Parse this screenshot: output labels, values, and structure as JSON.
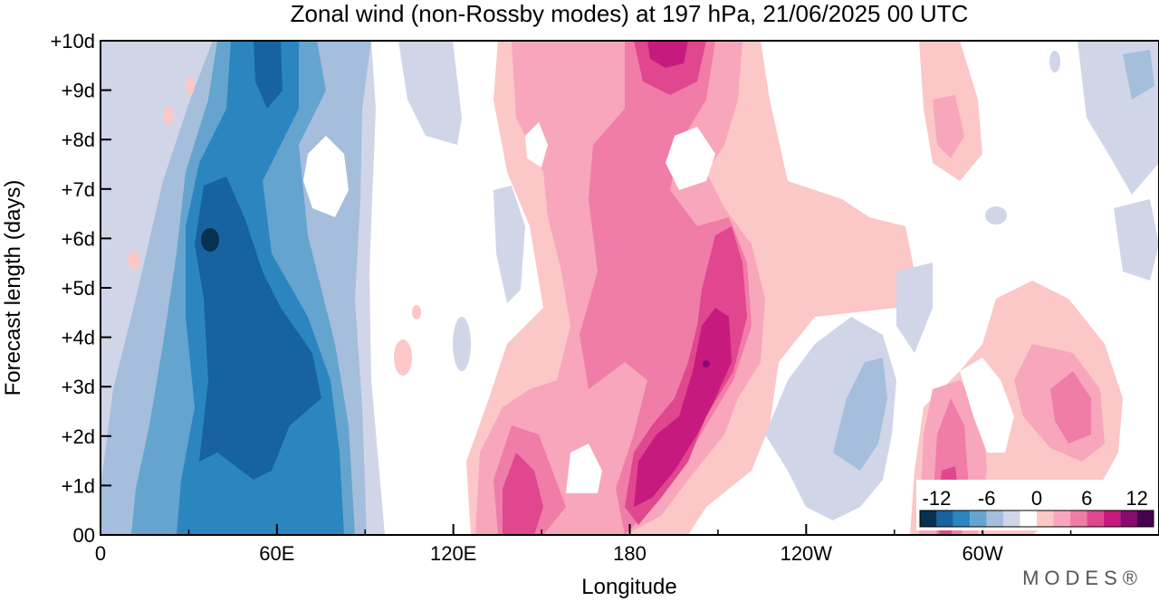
{
  "chart_data": {
    "type": "heatmap",
    "title": "Zonal wind (non-Rossby modes) at 197 hPa,  21/06/2025  00 UTC",
    "xlabel": "Longitude",
    "ylabel": "Forecast length (days)",
    "x_ticks": [
      {
        "lon": 0,
        "label": "0"
      },
      {
        "lon": 60,
        "label": "60E"
      },
      {
        "lon": 120,
        "label": "120E"
      },
      {
        "lon": 180,
        "label": "180"
      },
      {
        "lon": 240,
        "label": "120W"
      },
      {
        "lon": 300,
        "label": "60W"
      }
    ],
    "x_minor_step": 30,
    "xlim": [
      0,
      360
    ],
    "y_ticks": [
      {
        "day": 0,
        "label": "00"
      },
      {
        "day": 1,
        "label": "+1d"
      },
      {
        "day": 2,
        "label": "+2d"
      },
      {
        "day": 3,
        "label": "+3d"
      },
      {
        "day": 4,
        "label": "+4d"
      },
      {
        "day": 5,
        "label": "+5d"
      },
      {
        "day": 6,
        "label": "+6d"
      },
      {
        "day": 7,
        "label": "+7d"
      },
      {
        "day": 8,
        "label": "+8d"
      },
      {
        "day": 9,
        "label": "+9d"
      },
      {
        "day": 10,
        "label": "+10d"
      }
    ],
    "ylim": [
      0,
      10
    ],
    "colorbar": {
      "levels": [
        -14,
        -12,
        -10,
        -8,
        -6,
        -4,
        -2,
        2,
        4,
        6,
        8,
        10,
        12,
        14
      ],
      "labels": [
        {
          "value": -12,
          "label": "-12"
        },
        {
          "value": -6,
          "label": "-6"
        },
        {
          "value": 0,
          "label": "0"
        },
        {
          "value": 6,
          "label": "6"
        },
        {
          "value": 12,
          "label": "12"
        }
      ],
      "colors": [
        "#08304f",
        "#1762a0",
        "#2b86c0",
        "#65a4cf",
        "#a4bedc",
        "#d1d5e8",
        "#ffffff",
        "#fbc7c7",
        "#f8a6bb",
        "#f07ca8",
        "#e0478e",
        "#c61a7f",
        "#8a0a6f",
        "#4a0050"
      ]
    },
    "features": [
      {
        "name": "negative band western Indian Ocean",
        "lon": [
          10,
          95
        ],
        "day": [
          0,
          10
        ],
        "value": -10
      },
      {
        "name": "positive band central Pacific",
        "lon": [
          125,
          215
        ],
        "day": [
          0,
          10
        ],
        "value": 9
      },
      {
        "name": "positive patch Atlantic",
        "lon": [
          290,
          330
        ],
        "day": [
          0,
          4.5
        ],
        "value": 7
      }
    ]
  },
  "branding": {
    "logo": "MODES®"
  }
}
